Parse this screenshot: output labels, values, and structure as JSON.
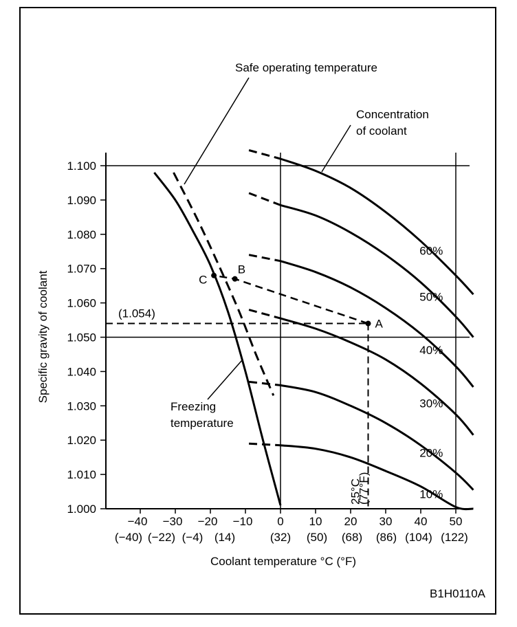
{
  "figure_code": "B1H0110A",
  "chart_data": {
    "type": "line",
    "title": "",
    "xlabel": "Coolant temperature °C (°F)",
    "ylabel": "Specific gravity of coolant",
    "xlim": [
      -50,
      52
    ],
    "ylim": [
      1.0,
      1.1
    ],
    "x_ticks": [
      {
        "c": -40,
        "label": "−40",
        "f_label": "(−40)"
      },
      {
        "c": -30,
        "label": "−30",
        "f_label": "(−22)"
      },
      {
        "c": -20,
        "label": "−20",
        "f_label": "(−4)"
      },
      {
        "c": -10,
        "label": "−10",
        "f_label": "(14)"
      },
      {
        "c": 0,
        "label": "0",
        "f_label": "(32)"
      },
      {
        "c": 10,
        "label": "10",
        "f_label": "(50)"
      },
      {
        "c": 20,
        "label": "20",
        "f_label": "(68)"
      },
      {
        "c": 30,
        "label": "30",
        "f_label": "(86)"
      },
      {
        "c": 40,
        "label": "40",
        "f_label": "(104)"
      },
      {
        "c": 50,
        "label": "50",
        "f_label": "(122)"
      }
    ],
    "y_ticks": [
      {
        "v": 1.0,
        "label": "1.000"
      },
      {
        "v": 1.01,
        "label": "1.010"
      },
      {
        "v": 1.02,
        "label": "1.020"
      },
      {
        "v": 1.03,
        "label": "1.030"
      },
      {
        "v": 1.04,
        "label": "1.040"
      },
      {
        "v": 1.05,
        "label": "1.050"
      },
      {
        "v": 1.06,
        "label": "1.060"
      },
      {
        "v": 1.07,
        "label": "1.070"
      },
      {
        "v": 1.08,
        "label": "1.080"
      },
      {
        "v": 1.09,
        "label": "1.090"
      },
      {
        "v": 1.1,
        "label": "1.100"
      }
    ],
    "reference_lines": {
      "y": [
        1.1,
        1.05
      ],
      "x": [
        0,
        50
      ]
    },
    "concentration_series": [
      {
        "name": "10%",
        "dashed": [
          [
            -9,
            1.019
          ],
          [
            0,
            1.0185
          ]
        ],
        "solid": [
          [
            0,
            1.0185
          ],
          [
            10,
            1.0175
          ],
          [
            20,
            1.015
          ],
          [
            30,
            1.011
          ],
          [
            40,
            1.0065
          ],
          [
            50,
            1.0005
          ],
          [
            55,
            1.0
          ]
        ]
      },
      {
        "name": "20%",
        "dashed": [
          [
            -9,
            1.037
          ],
          [
            0,
            1.036
          ]
        ],
        "solid": [
          [
            0,
            1.036
          ],
          [
            10,
            1.034
          ],
          [
            20,
            1.03
          ],
          [
            30,
            1.025
          ],
          [
            40,
            1.0185
          ],
          [
            50,
            1.0105
          ],
          [
            55,
            1.0055
          ]
        ]
      },
      {
        "name": "30%",
        "dashed": [
          [
            -9,
            1.058
          ],
          [
            0,
            1.0555
          ]
        ],
        "solid": [
          [
            0,
            1.0555
          ],
          [
            10,
            1.0525
          ],
          [
            20,
            1.0485
          ],
          [
            30,
            1.0435
          ],
          [
            40,
            1.0365
          ],
          [
            50,
            1.0275
          ],
          [
            55,
            1.0215
          ]
        ]
      },
      {
        "name": "40%",
        "dashed": [
          [
            -9,
            1.074
          ],
          [
            0,
            1.0722
          ]
        ],
        "solid": [
          [
            0,
            1.0722
          ],
          [
            10,
            1.069
          ],
          [
            20,
            1.0645
          ],
          [
            30,
            1.0585
          ],
          [
            40,
            1.051
          ],
          [
            50,
            1.0415
          ],
          [
            55,
            1.0355
          ]
        ]
      },
      {
        "name": "50%",
        "dashed": [
          [
            -9,
            1.092
          ],
          [
            0,
            1.0885
          ]
        ],
        "solid": [
          [
            0,
            1.0885
          ],
          [
            10,
            1.0855
          ],
          [
            20,
            1.0805
          ],
          [
            30,
            1.074
          ],
          [
            40,
            1.066
          ],
          [
            50,
            1.056
          ],
          [
            55,
            1.05
          ]
        ]
      },
      {
        "name": "60%",
        "dashed": [
          [
            -9,
            1.1045
          ],
          [
            0,
            1.102
          ]
        ],
        "solid": [
          [
            0,
            1.102
          ],
          [
            10,
            1.0985
          ],
          [
            20,
            1.0935
          ],
          [
            30,
            1.0865
          ],
          [
            40,
            1.078
          ],
          [
            50,
            1.068
          ],
          [
            55,
            1.0625
          ]
        ]
      }
    ],
    "percent_labels": [
      {
        "text": "10%",
        "x": 43,
        "y": 1.0045
      },
      {
        "text": "20%",
        "x": 43,
        "y": 1.0165
      },
      {
        "text": "30%",
        "x": 43,
        "y": 1.031
      },
      {
        "text": "40%",
        "x": 43,
        "y": 1.0465
      },
      {
        "text": "50%",
        "x": 43,
        "y": 1.062
      },
      {
        "text": "60%",
        "x": 43,
        "y": 1.0755
      }
    ],
    "freezing_curve": [
      [
        -36,
        1.098
      ],
      [
        -30,
        1.09
      ],
      [
        -25,
        1.081
      ],
      [
        -20,
        1.071
      ],
      [
        -15,
        1.0575
      ],
      [
        -10,
        1.04
      ],
      [
        -5,
        1.02
      ],
      [
        0,
        1.001
      ]
    ],
    "safe_curve": [
      [
        -30.5,
        1.098
      ],
      [
        -24,
        1.085
      ],
      [
        -18.5,
        1.073
      ],
      [
        -12,
        1.058
      ],
      [
        -7,
        1.045
      ],
      [
        -2,
        1.033
      ]
    ],
    "example": {
      "specific_gravity": 1.054,
      "temperature_c": 25,
      "gravity_label": "(1.054)",
      "temp_label": "25°C",
      "temp_label_f": "(77°F)"
    },
    "points": [
      {
        "name": "A",
        "x": 25,
        "y": 1.054
      },
      {
        "name": "B",
        "x": -13,
        "y": 1.067
      },
      {
        "name": "C",
        "x": -19,
        "y": 1.068
      }
    ],
    "interpolation_path": [
      [
        25,
        1.054
      ],
      [
        -13,
        1.067
      ],
      [
        -19,
        1.068
      ]
    ],
    "annotations": {
      "safe_operating": "Safe operating temperature",
      "concentration_line1": "Concentration",
      "concentration_line2": "of coolant",
      "freezing_line1": "Freezing",
      "freezing_line2": "temperature"
    }
  }
}
